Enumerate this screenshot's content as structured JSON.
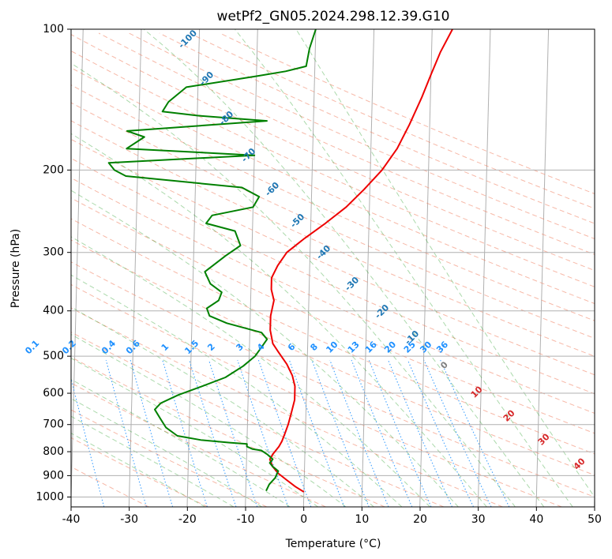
{
  "chart_data": {
    "type": "line",
    "subtype": "skew-t log-p diagram",
    "title": "wetPf2_GN05.2024.298.12.39.G10",
    "xlabel": "Temperature (°C)",
    "ylabel": "Pressure (hPa)",
    "xlim": [
      -40,
      50
    ],
    "ylim": [
      1050,
      100
    ],
    "y_scale": "log",
    "grid": true,
    "x_ticks": [
      -40,
      -30,
      -20,
      -10,
      0,
      10,
      20,
      30,
      40,
      50
    ],
    "y_ticks": [
      100,
      200,
      300,
      400,
      500,
      600,
      700,
      800,
      900,
      1000
    ],
    "series": [
      {
        "key": "temperature",
        "color": "#ee0000",
        "points": [
          [
            0,
            975
          ],
          [
            -1.5,
            950
          ],
          [
            -3,
            920
          ],
          [
            -4.5,
            890
          ],
          [
            -5.5,
            860
          ],
          [
            -6,
            830
          ],
          [
            -5.5,
            810
          ],
          [
            -4.5,
            780
          ],
          [
            -4,
            760
          ],
          [
            -3.5,
            730
          ],
          [
            -3,
            700
          ],
          [
            -2.5,
            660
          ],
          [
            -2,
            620
          ],
          [
            -2,
            580
          ],
          [
            -2.5,
            550
          ],
          [
            -3.5,
            520
          ],
          [
            -5,
            490
          ],
          [
            -6,
            470
          ],
          [
            -6.5,
            440
          ],
          [
            -6.5,
            410
          ],
          [
            -6,
            380
          ],
          [
            -6.5,
            360
          ],
          [
            -6.5,
            340
          ],
          [
            -5.5,
            320
          ],
          [
            -4,
            300
          ],
          [
            -1,
            280
          ],
          [
            2.5,
            260
          ],
          [
            6,
            240
          ],
          [
            9,
            220
          ],
          [
            12,
            200
          ],
          [
            14.5,
            180
          ],
          [
            16.5,
            160
          ],
          [
            18.5,
            140
          ],
          [
            20,
            125
          ],
          [
            21.5,
            112
          ],
          [
            23.5,
            100
          ]
        ]
      },
      {
        "key": "dewpoint",
        "color": "#008000",
        "points": [
          [
            -6.5,
            970
          ],
          [
            -6,
            940
          ],
          [
            -5,
            910
          ],
          [
            -4.5,
            880
          ],
          [
            -5.5,
            860
          ],
          [
            -6,
            845
          ],
          [
            -5.5,
            830
          ],
          [
            -6.5,
            810
          ],
          [
            -7.5,
            795
          ],
          [
            -9,
            790
          ],
          [
            -10,
            780
          ],
          [
            -10,
            770
          ],
          [
            -13,
            765
          ],
          [
            -18,
            755
          ],
          [
            -22,
            740
          ],
          [
            -24,
            710
          ],
          [
            -25,
            680
          ],
          [
            -26,
            650
          ],
          [
            -25,
            630
          ],
          [
            -22,
            605
          ],
          [
            -18,
            580
          ],
          [
            -14,
            555
          ],
          [
            -11,
            525
          ],
          [
            -9,
            500
          ],
          [
            -8,
            480
          ],
          [
            -7,
            460
          ],
          [
            -8,
            445
          ],
          [
            -14,
            425
          ],
          [
            -17,
            410
          ],
          [
            -17.5,
            395
          ],
          [
            -15.5,
            380
          ],
          [
            -15,
            365
          ],
          [
            -17,
            350
          ],
          [
            -18,
            330
          ],
          [
            -14.5,
            305
          ],
          [
            -12,
            290
          ],
          [
            -13,
            270
          ],
          [
            -18,
            260
          ],
          [
            -17,
            250
          ],
          [
            -10,
            240
          ],
          [
            -9,
            228
          ],
          [
            -12,
            218
          ],
          [
            -32,
            206
          ],
          [
            -34,
            200
          ],
          [
            -35,
            193
          ],
          [
            -10,
            186
          ],
          [
            -32,
            180
          ],
          [
            -29,
            170
          ],
          [
            -32,
            165
          ],
          [
            -8,
            157
          ],
          [
            -20,
            153
          ],
          [
            -26,
            150
          ],
          [
            -25,
            143
          ],
          [
            -22,
            133
          ],
          [
            -10,
            126
          ],
          [
            -5,
            123
          ],
          [
            -1.5,
            120
          ],
          [
            -1,
            110
          ],
          [
            0,
            100
          ]
        ]
      }
    ],
    "isotherm_labels": [
      "-100",
      "-90",
      "-80",
      "-70",
      "-60",
      "-50",
      "-40",
      "-30",
      "-20",
      "-10"
    ],
    "mixing_ratio_labels": [
      "0.1",
      "0.2",
      "0.4",
      "0.6",
      "1",
      "1.5",
      "2",
      "3",
      "4",
      "6",
      "8",
      "10",
      "13",
      "16",
      "20",
      "25",
      "30",
      "36"
    ],
    "moist_adiabat_labels": [
      "0",
      "10",
      "20",
      "30",
      "40"
    ],
    "colors": {
      "isotherm": "#1f77b4",
      "mixing_ratio": "#1e90ff",
      "dry_adiabat": "#f08060",
      "moist_adiabat": "#2ca02c",
      "moist_label_zero": "#808080",
      "moist_label": "#d62728",
      "temperature": "#ee0000",
      "dewpoint": "#008000"
    }
  }
}
